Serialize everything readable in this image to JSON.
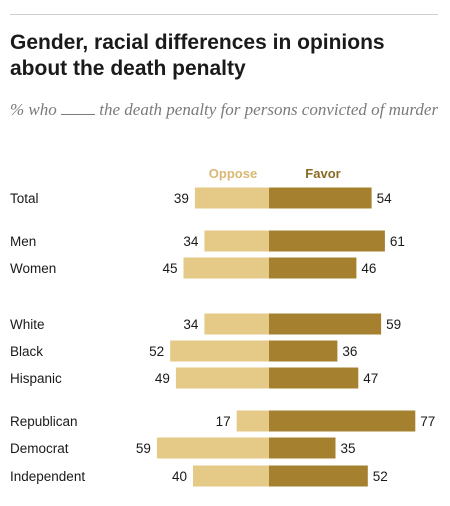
{
  "title": "Gender, racial differences in opinions about the death penalty",
  "subtitle_before": "% who ",
  "subtitle_after": " the death penalty for persons convicted of murder",
  "colors": {
    "oppose": "#e5c987",
    "favor": "#a5802f",
    "oppose_legend": "#d9b873",
    "favor_legend": "#8a6a22"
  },
  "chart_data": {
    "type": "bar",
    "orientation": "diverging-horizontal",
    "categories": [
      "Total",
      "Men",
      "Women",
      "White",
      "Black",
      "Hispanic",
      "Republican",
      "Democrat",
      "Independent"
    ],
    "groups": [
      [
        0
      ],
      [
        1,
        2
      ],
      [
        3,
        4,
        5
      ],
      [
        6,
        7,
        8
      ]
    ],
    "series": [
      {
        "name": "Oppose",
        "values": [
          39,
          34,
          45,
          34,
          52,
          49,
          17,
          59,
          40
        ]
      },
      {
        "name": "Favor",
        "values": [
          54,
          61,
          46,
          59,
          36,
          47,
          77,
          35,
          52
        ]
      }
    ],
    "legend": "top"
  }
}
